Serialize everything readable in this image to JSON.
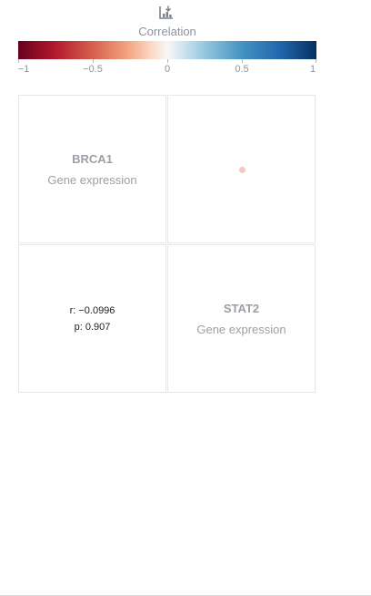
{
  "toolbar": {
    "download_icon": "download-chart-icon"
  },
  "legend": {
    "title": "Correlation",
    "ticks": [
      {
        "value": -1,
        "label": "−1"
      },
      {
        "value": -0.5,
        "label": "−0.5"
      },
      {
        "value": 0,
        "label": "0"
      },
      {
        "value": 0.5,
        "label": "0.5"
      },
      {
        "value": 1,
        "label": "1"
      }
    ],
    "range": [
      -1,
      1
    ]
  },
  "chart_data": {
    "type": "scatter",
    "variables": [
      {
        "name": "BRCA1",
        "type": "Gene expression"
      },
      {
        "name": "STAT2",
        "type": "Gene expression"
      }
    ],
    "correlation": {
      "r_label": "r: −0.0996",
      "p_label": "p: 0.907",
      "r": -0.0996,
      "p": 0.907
    },
    "points": [
      {
        "x": 0.5,
        "y": 0.5
      }
    ],
    "point_color": "#f6c8c0",
    "colorscale": [
      "#67001f",
      "#b2182b",
      "#d6604d",
      "#f4a582",
      "#fddbc7",
      "#f7f7f7",
      "#d1e5f0",
      "#92c5de",
      "#4393c3",
      "#2166ac",
      "#053061"
    ]
  }
}
